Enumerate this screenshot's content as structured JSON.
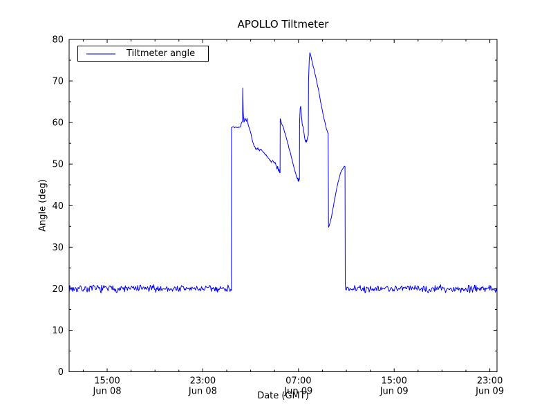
{
  "figure": {
    "title": "APOLLO Tiltmeter",
    "xlabel": "Date (GMT)",
    "ylabel": "Angle (deg)",
    "legend_label": "Tiltmeter angle",
    "background_color": "#ffffff",
    "axis_color": "#000000",
    "line_color": "#0000ff",
    "legend_sample_color": "#7b7bf0"
  },
  "chart_data": {
    "type": "line",
    "title": "APOLLO Tiltmeter",
    "xlabel": "Date (GMT)",
    "ylabel": "Angle (deg)",
    "grid": false,
    "legend_position": "upper left",
    "ylim": [
      0,
      80
    ],
    "yticks": [
      0,
      10,
      20,
      30,
      40,
      50,
      60,
      70,
      80
    ],
    "y_minor_step": 5,
    "x_axis_hours": [
      0,
      35.78
    ],
    "x_minor_hours": 2,
    "xticks": [
      {
        "hour": 3.18,
        "label_time": "15:00",
        "label_date": "Jun 08"
      },
      {
        "hour": 11.18,
        "label_time": "23:00",
        "label_date": "Jun 08"
      },
      {
        "hour": 19.18,
        "label_time": "07:00",
        "label_date": "Jun 09"
      },
      {
        "hour": 27.18,
        "label_time": "15:00",
        "label_date": "Jun 09"
      },
      {
        "hour": 35.18,
        "label_time": "23:00",
        "label_date": "Jun 09"
      }
    ],
    "series": [
      {
        "name": "Tiltmeter angle",
        "color": "#0000ff",
        "segments": [
          {
            "kind": "move",
            "points": [
              [
                0,
                0
              ],
              [
                0,
                20
              ]
            ]
          },
          {
            "kind": "noise",
            "from": 0,
            "to": 13.58,
            "base": 20,
            "amp": 1.1,
            "step": 0.058,
            "seed": 7
          },
          {
            "kind": "line",
            "points": [
              [
                13.58,
                58.8
              ]
            ]
          },
          {
            "kind": "wiggle",
            "amp": 0.3,
            "seed": 11,
            "points": [
              [
                13.7,
                58.9
              ],
              [
                14.0,
                58.8
              ],
              [
                14.2,
                59.0
              ],
              [
                14.33,
                58.9
              ],
              [
                14.4,
                59.7
              ],
              [
                14.46,
                60.2
              ],
              [
                14.5,
                60.4
              ]
            ]
          },
          {
            "kind": "line",
            "points": [
              [
                14.52,
                68.3
              ],
              [
                14.56,
                62.4
              ],
              [
                14.62,
                60.1
              ]
            ]
          },
          {
            "kind": "wiggle",
            "amp": 0.3,
            "seed": 12,
            "points": [
              [
                14.7,
                60.9
              ],
              [
                14.76,
                61.0
              ],
              [
                14.82,
                60.2
              ],
              [
                14.88,
                60.9
              ],
              [
                14.93,
                60.1
              ],
              [
                15.02,
                58.9
              ],
              [
                15.12,
                58.1
              ],
              [
                15.22,
                57.2
              ],
              [
                15.34,
                55.6
              ],
              [
                15.47,
                54.5
              ],
              [
                15.62,
                53.6
              ],
              [
                15.78,
                53.9
              ],
              [
                15.92,
                53.3
              ],
              [
                16.07,
                53.6
              ],
              [
                16.2,
                53.1
              ],
              [
                16.32,
                52.7
              ],
              [
                16.47,
                52.1
              ],
              [
                16.62,
                51.5
              ],
              [
                16.77,
                51.1
              ],
              [
                16.9,
                50.5
              ],
              [
                17.02,
                50.9
              ],
              [
                17.12,
                50.1
              ],
              [
                17.22,
                50.5
              ],
              [
                17.3,
                49.8
              ],
              [
                17.37,
                48.9
              ],
              [
                17.44,
                49.5
              ],
              [
                17.51,
                48.3
              ],
              [
                17.56,
                48.9
              ],
              [
                17.61,
                47.9
              ]
            ]
          },
          {
            "kind": "line",
            "points": [
              [
                17.64,
                47.9
              ],
              [
                17.65,
                60.9
              ]
            ]
          },
          {
            "kind": "wiggle",
            "amp": 0.25,
            "seed": 13,
            "points": [
              [
                17.72,
                60.4
              ],
              [
                17.82,
                59.5
              ],
              [
                17.94,
                58.5
              ],
              [
                18.07,
                57.3
              ],
              [
                18.22,
                55.7
              ],
              [
                18.37,
                54.1
              ],
              [
                18.52,
                52.5
              ],
              [
                18.64,
                51.1
              ],
              [
                18.77,
                49.7
              ],
              [
                18.87,
                48.5
              ],
              [
                18.97,
                47.5
              ],
              [
                19.04,
                46.8
              ],
              [
                19.09,
                46.2
              ],
              [
                19.12,
                46.8
              ],
              [
                19.15,
                45.9
              ],
              [
                19.18,
                46.6
              ],
              [
                19.21,
                45.9
              ],
              [
                19.24,
                46.3
              ]
            ]
          },
          {
            "kind": "line",
            "points": [
              [
                19.26,
                46.3
              ],
              [
                19.27,
                59.8
              ],
              [
                19.32,
                63.4
              ],
              [
                19.37,
                63.9
              ],
              [
                19.42,
                61.8
              ],
              [
                19.5,
                59.4
              ],
              [
                19.56,
                59.0
              ],
              [
                19.63,
                57.7
              ],
              [
                19.7,
                56.2
              ],
              [
                19.77,
                55.3
              ],
              [
                19.82,
                55.8
              ],
              [
                19.86,
                55.3
              ],
              [
                19.92,
                56.2
              ],
              [
                19.97,
                56.7
              ],
              [
                20.0,
                56.9
              ],
              [
                20.02,
                70.0
              ],
              [
                20.08,
                75.2
              ],
              [
                20.13,
                76.8
              ],
              [
                20.2,
                76.2
              ]
            ]
          },
          {
            "kind": "wiggle",
            "amp": 0.22,
            "seed": 14,
            "points": [
              [
                20.32,
                74.7
              ],
              [
                20.47,
                72.8
              ],
              [
                20.62,
                71.1
              ],
              [
                20.77,
                68.9
              ],
              [
                20.92,
                66.9
              ],
              [
                21.02,
                65.2
              ],
              [
                21.12,
                63.7
              ],
              [
                21.22,
                62.1
              ],
              [
                21.32,
                60.9
              ],
              [
                21.42,
                59.7
              ],
              [
                21.52,
                58.5
              ],
              [
                21.63,
                57.6
              ]
            ]
          },
          {
            "kind": "line",
            "points": [
              [
                21.66,
                57.5
              ],
              [
                21.69,
                34.8
              ]
            ]
          },
          {
            "kind": "wiggle",
            "amp": 0.2,
            "seed": 15,
            "points": [
              [
                21.78,
                35.5
              ],
              [
                21.92,
                37.1
              ],
              [
                22.06,
                39.3
              ],
              [
                22.2,
                41.5
              ],
              [
                22.34,
                43.7
              ],
              [
                22.48,
                45.5
              ],
              [
                22.62,
                47.1
              ],
              [
                22.76,
                48.3
              ],
              [
                22.9,
                49.0
              ],
              [
                23.02,
                49.4
              ]
            ]
          },
          {
            "kind": "line",
            "points": [
              [
                23.07,
                49.4
              ],
              [
                23.09,
                21.3
              ]
            ]
          },
          {
            "kind": "noise",
            "from": 23.12,
            "to": 35.78,
            "base": 20,
            "amp": 1.1,
            "step": 0.058,
            "seed": 21
          }
        ]
      }
    ]
  }
}
